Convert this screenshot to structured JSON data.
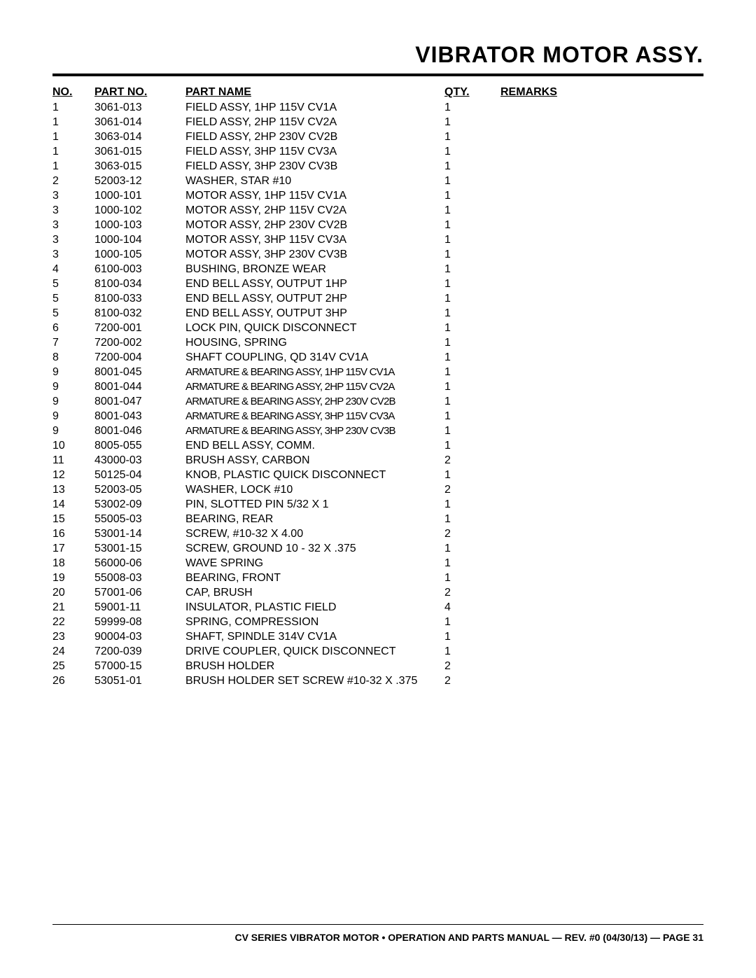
{
  "title": "VIBRATOR MOTOR ASSY.",
  "headers": {
    "no": "NO.",
    "partno": "PART NO.",
    "partname": "PART NAME",
    "qty": "QTY.",
    "remarks": "REMARKS"
  },
  "rows": [
    {
      "no": "1",
      "partno": "3061-013",
      "name": "FIELD ASSY, 1HP 115V CV1A",
      "qty": "1",
      "remarks": "",
      "condensed": false
    },
    {
      "no": "1",
      "partno": "3061-014",
      "name": "FIELD ASSY, 2HP 115V CV2A",
      "qty": "1",
      "remarks": "",
      "condensed": false
    },
    {
      "no": "1",
      "partno": "3063-014",
      "name": "FIELD ASSY, 2HP 230V CV2B",
      "qty": "1",
      "remarks": "",
      "condensed": false
    },
    {
      "no": "1",
      "partno": "3061-015",
      "name": "FIELD ASSY, 3HP 115V CV3A",
      "qty": "1",
      "remarks": "",
      "condensed": false
    },
    {
      "no": "1",
      "partno": "3063-015",
      "name": "FIELD ASSY, 3HP 230V CV3B",
      "qty": "1",
      "remarks": "",
      "condensed": false
    },
    {
      "no": "2",
      "partno": "52003-12",
      "name": "WASHER, STAR #10",
      "qty": "1",
      "remarks": "",
      "condensed": false
    },
    {
      "no": "3",
      "partno": "1000-101",
      "name": "MOTOR ASSY, 1HP 115V CV1A",
      "qty": "1",
      "remarks": "",
      "condensed": false
    },
    {
      "no": "3",
      "partno": "1000-102",
      "name": "MOTOR ASSY, 2HP 115V CV2A",
      "qty": "1",
      "remarks": "",
      "condensed": false
    },
    {
      "no": "3",
      "partno": "1000-103",
      "name": "MOTOR ASSY, 2HP 230V CV2B",
      "qty": "1",
      "remarks": "",
      "condensed": false
    },
    {
      "no": "3",
      "partno": "1000-104",
      "name": "MOTOR ASSY, 3HP 115V CV3A",
      "qty": "1",
      "remarks": "",
      "condensed": false
    },
    {
      "no": "3",
      "partno": "1000-105",
      "name": "MOTOR ASSY, 3HP 230V CV3B",
      "qty": "1",
      "remarks": "",
      "condensed": false
    },
    {
      "no": "4",
      "partno": "6100-003",
      "name": "BUSHING, BRONZE WEAR",
      "qty": "1",
      "remarks": "",
      "condensed": false
    },
    {
      "no": "5",
      "partno": "8100-034",
      "name": "END BELL ASSY, OUTPUT 1HP",
      "qty": "1",
      "remarks": "",
      "condensed": false
    },
    {
      "no": "5",
      "partno": "8100-033",
      "name": "END BELL ASSY, OUTPUT 2HP",
      "qty": "1",
      "remarks": "",
      "condensed": false
    },
    {
      "no": "5",
      "partno": "8100-032",
      "name": "END BELL ASSY, OUTPUT 3HP",
      "qty": "1",
      "remarks": "",
      "condensed": false
    },
    {
      "no": "6",
      "partno": "7200-001",
      "name": "LOCK PIN, QUICK DISCONNECT",
      "qty": "1",
      "remarks": "",
      "condensed": false
    },
    {
      "no": "7",
      "partno": "7200-002",
      "name": "HOUSING, SPRING",
      "qty": "1",
      "remarks": "",
      "condensed": false
    },
    {
      "no": "8",
      "partno": "7200-004",
      "name": "SHAFT COUPLING, QD 314V CV1A",
      "qty": "1",
      "remarks": "",
      "condensed": false
    },
    {
      "no": "9",
      "partno": "8001-045",
      "name": "ARMATURE & BEARING ASSY, 1HP 115V CV1A",
      "qty": "1",
      "remarks": "",
      "condensed": true
    },
    {
      "no": "9",
      "partno": "8001-044",
      "name": "ARMATURE & BEARING ASSY, 2HP 115V CV2A",
      "qty": "1",
      "remarks": "",
      "condensed": true
    },
    {
      "no": "9",
      "partno": "8001-047",
      "name": "ARMATURE & BEARING ASSY, 2HP 230V CV2B",
      "qty": "1",
      "remarks": "",
      "condensed": true
    },
    {
      "no": "9",
      "partno": "8001-043",
      "name": "ARMATURE & BEARING ASSY, 3HP 115V CV3A",
      "qty": "1",
      "remarks": "",
      "condensed": true
    },
    {
      "no": "9",
      "partno": "8001-046",
      "name": "ARMATURE & BEARING ASSY, 3HP 230V CV3B",
      "qty": "1",
      "remarks": "",
      "condensed": true
    },
    {
      "no": "10",
      "partno": "8005-055",
      "name": "END BELL ASSY, COMM.",
      "qty": "1",
      "remarks": "",
      "condensed": false
    },
    {
      "no": "11",
      "partno": "43000-03",
      "name": "BRUSH ASSY, CARBON",
      "qty": "2",
      "remarks": "",
      "condensed": false
    },
    {
      "no": "12",
      "partno": "50125-04",
      "name": "KNOB, PLASTIC QUICK DISCONNECT",
      "qty": "1",
      "remarks": "",
      "condensed": false
    },
    {
      "no": "13",
      "partno": "52003-05",
      "name": "WASHER, LOCK #10",
      "qty": "2",
      "remarks": "",
      "condensed": false
    },
    {
      "no": "14",
      "partno": "53002-09",
      "name": "PIN, SLOTTED PIN 5/32 X 1",
      "qty": "1",
      "remarks": "",
      "condensed": false
    },
    {
      "no": "15",
      "partno": "55005-03",
      "name": "BEARING, REAR",
      "qty": "1",
      "remarks": "",
      "condensed": false
    },
    {
      "no": "16",
      "partno": "53001-14",
      "name": "SCREW, #10-32 X 4.00",
      "qty": "2",
      "remarks": "",
      "condensed": false
    },
    {
      "no": "17",
      "partno": "53001-15",
      "name": "SCREW, GROUND 10 - 32 X .375",
      "qty": "1",
      "remarks": "",
      "condensed": false
    },
    {
      "no": "18",
      "partno": "56000-06",
      "name": "WAVE SPRING",
      "qty": "1",
      "remarks": "",
      "condensed": false
    },
    {
      "no": "19",
      "partno": "55008-03",
      "name": "BEARING, FRONT",
      "qty": "1",
      "remarks": "",
      "condensed": false
    },
    {
      "no": "20",
      "partno": "57001-06",
      "name": "CAP, BRUSH",
      "qty": "2",
      "remarks": "",
      "condensed": false
    },
    {
      "no": "21",
      "partno": "59001-11",
      "name": "INSULATOR, PLASTIC FIELD",
      "qty": "4",
      "remarks": "",
      "condensed": false
    },
    {
      "no": "22",
      "partno": "59999-08",
      "name": "SPRING, COMPRESSION",
      "qty": "1",
      "remarks": "",
      "condensed": false
    },
    {
      "no": "23",
      "partno": "90004-03",
      "name": "SHAFT, SPINDLE 314V CV1A",
      "qty": "1",
      "remarks": "",
      "condensed": false
    },
    {
      "no": "24",
      "partno": "7200-039",
      "name": "DRIVE COUPLER, QUICK DISCONNECT",
      "qty": "1",
      "remarks": "",
      "condensed": false
    },
    {
      "no": "25",
      "partno": "57000-15",
      "name": "BRUSH HOLDER",
      "qty": "2",
      "remarks": "",
      "condensed": false
    },
    {
      "no": "26",
      "partno": "53051-01",
      "name": "BRUSH HOLDER SET SCREW #10-32 X .375",
      "qty": "2",
      "remarks": "",
      "condensed": false
    }
  ],
  "footer": "CV SERIES VIBRATOR MOTOR • OPERATION AND PARTS MANUAL — REV. #0 (04/30/13) — PAGE 31"
}
